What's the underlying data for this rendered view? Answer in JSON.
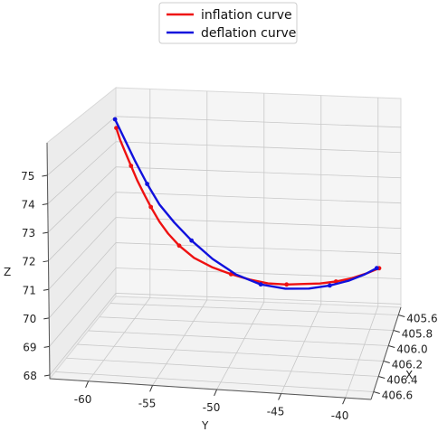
{
  "chart_data": {
    "type": "line",
    "projection": "3d",
    "xlabel": "X",
    "ylabel": "Y",
    "zlabel": "Z",
    "xlim": [
      405.5,
      406.7
    ],
    "ylim": [
      -63,
      -38
    ],
    "zlim": [
      68,
      75.6
    ],
    "x_ticks": [
      "405.6",
      "405.8",
      "406.0",
      "406.2",
      "406.4",
      "406.6"
    ],
    "y_ticks": [
      "-60",
      "-55",
      "-50",
      "-45",
      "-40"
    ],
    "z_ticks": [
      "68",
      "69",
      "70",
      "71",
      "72",
      "73",
      "74",
      "75"
    ],
    "grid": true,
    "legend_position": "top-center",
    "series": [
      {
        "name": "inflation curve",
        "color": "#ee1111",
        "points": [
          {
            "y": -61.1,
            "z": 75.0
          },
          {
            "y": -60.8,
            "z": 74.6
          },
          {
            "y": -60.4,
            "z": 74.2
          },
          {
            "y": -59.9,
            "z": 73.7
          },
          {
            "y": -59.4,
            "z": 73.2
          },
          {
            "y": -58.8,
            "z": 72.7
          },
          {
            "y": -58.3,
            "z": 72.3
          },
          {
            "y": -57.6,
            "z": 71.8
          },
          {
            "y": -56.9,
            "z": 71.4
          },
          {
            "y": -56.0,
            "z": 71.0
          },
          {
            "y": -54.8,
            "z": 70.6
          },
          {
            "y": -53.3,
            "z": 70.3
          },
          {
            "y": -51.8,
            "z": 70.1
          },
          {
            "y": -50.3,
            "z": 69.95
          },
          {
            "y": -48.8,
            "z": 69.85
          },
          {
            "y": -47.3,
            "z": 69.85
          },
          {
            "y": -45.9,
            "z": 69.9
          },
          {
            "y": -44.6,
            "z": 69.95
          },
          {
            "y": -43.3,
            "z": 70.05
          },
          {
            "y": -42.0,
            "z": 70.2
          },
          {
            "y": -40.8,
            "z": 70.4
          },
          {
            "y": -39.8,
            "z": 70.6
          }
        ]
      },
      {
        "name": "deflation curve",
        "color": "#1111dd",
        "points": [
          {
            "y": -61.2,
            "z": 75.3
          },
          {
            "y": -60.4,
            "z": 74.6
          },
          {
            "y": -59.6,
            "z": 73.9
          },
          {
            "y": -58.6,
            "z": 73.1
          },
          {
            "y": -57.6,
            "z": 72.4
          },
          {
            "y": -56.4,
            "z": 71.8
          },
          {
            "y": -55.0,
            "z": 71.2
          },
          {
            "y": -53.3,
            "z": 70.6
          },
          {
            "y": -51.4,
            "z": 70.1
          },
          {
            "y": -49.4,
            "z": 69.8
          },
          {
            "y": -47.4,
            "z": 69.7
          },
          {
            "y": -45.5,
            "z": 69.75
          },
          {
            "y": -43.8,
            "z": 69.9
          },
          {
            "y": -42.3,
            "z": 70.1
          },
          {
            "y": -41.0,
            "z": 70.35
          },
          {
            "y": -40.0,
            "z": 70.6
          }
        ]
      }
    ]
  }
}
